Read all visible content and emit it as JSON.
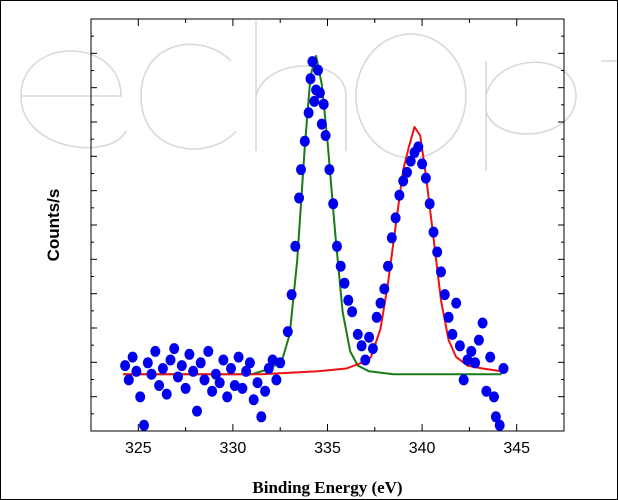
{
  "chart_data": {
    "type": "scatter",
    "title": "",
    "xlabel": "Binding Energy (eV)",
    "ylabel": "Counts/s",
    "xlim": [
      322.5,
      347.5
    ],
    "ylim": [
      -0.2,
      1.25
    ],
    "x_ticks": [
      325,
      330,
      335,
      340,
      345
    ],
    "x_tick_labels": [
      "325",
      "330",
      "335",
      "340",
      "345"
    ],
    "y_tick_labels_shown": false,
    "grid": false,
    "legend": "none",
    "series": [
      {
        "type": "scatter",
        "color": "#0000ee",
        "points": [
          [
            324.3,
            0.03
          ],
          [
            324.5,
            -0.02
          ],
          [
            324.7,
            0.06
          ],
          [
            324.9,
            0.01
          ],
          [
            325.1,
            -0.08
          ],
          [
            325.3,
            -0.18
          ],
          [
            325.5,
            0.04
          ],
          [
            325.7,
            0.0
          ],
          [
            325.9,
            0.08
          ],
          [
            326.1,
            -0.04
          ],
          [
            326.3,
            0.02
          ],
          [
            326.5,
            -0.07
          ],
          [
            326.7,
            0.05
          ],
          [
            326.9,
            0.09
          ],
          [
            327.1,
            -0.01
          ],
          [
            327.3,
            0.03
          ],
          [
            327.5,
            -0.05
          ],
          [
            327.7,
            0.07
          ],
          [
            327.9,
            0.01
          ],
          [
            328.1,
            -0.13
          ],
          [
            328.3,
            0.04
          ],
          [
            328.5,
            -0.02
          ],
          [
            328.7,
            0.08
          ],
          [
            328.9,
            -0.06
          ],
          [
            329.1,
            0.0
          ],
          [
            329.3,
            -0.03
          ],
          [
            329.5,
            0.05
          ],
          [
            329.7,
            -0.08
          ],
          [
            329.9,
            0.02
          ],
          [
            330.1,
            -0.04
          ],
          [
            330.3,
            0.06
          ],
          [
            330.5,
            -0.05
          ],
          [
            330.7,
            0.01
          ],
          [
            330.9,
            0.04
          ],
          [
            331.1,
            -0.09
          ],
          [
            331.3,
            -0.03
          ],
          [
            331.5,
            -0.15
          ],
          [
            331.7,
            -0.06
          ],
          [
            331.9,
            0.02
          ],
          [
            332.1,
            0.05
          ],
          [
            332.3,
            -0.02
          ],
          [
            332.5,
            0.04
          ],
          [
            332.9,
            0.15
          ],
          [
            333.1,
            0.28
          ],
          [
            333.3,
            0.45
          ],
          [
            333.5,
            0.62
          ],
          [
            333.6,
            0.72
          ],
          [
            333.8,
            0.82
          ],
          [
            334.0,
            0.92
          ],
          [
            334.1,
            1.04
          ],
          [
            334.2,
            1.1
          ],
          [
            334.3,
            0.96
          ],
          [
            334.4,
            1.0
          ],
          [
            334.5,
            1.07
          ],
          [
            334.6,
            0.99
          ],
          [
            334.7,
            0.88
          ],
          [
            334.8,
            0.95
          ],
          [
            334.9,
            0.84
          ],
          [
            335.1,
            0.72
          ],
          [
            335.3,
            0.6
          ],
          [
            335.5,
            0.45
          ],
          [
            335.7,
            0.38
          ],
          [
            335.9,
            0.32
          ],
          [
            336.1,
            0.26
          ],
          [
            336.3,
            0.22
          ],
          [
            336.6,
            0.14
          ],
          [
            336.8,
            0.1
          ],
          [
            337.0,
            0.05
          ],
          [
            337.2,
            0.13
          ],
          [
            337.4,
            0.09
          ],
          [
            337.6,
            0.2
          ],
          [
            337.8,
            0.25
          ],
          [
            338.0,
            0.3
          ],
          [
            338.2,
            0.38
          ],
          [
            338.4,
            0.48
          ],
          [
            338.6,
            0.55
          ],
          [
            338.8,
            0.63
          ],
          [
            339.0,
            0.68
          ],
          [
            339.2,
            0.71
          ],
          [
            339.4,
            0.75
          ],
          [
            339.6,
            0.78
          ],
          [
            339.8,
            0.8
          ],
          [
            340.0,
            0.74
          ],
          [
            340.2,
            0.69
          ],
          [
            340.4,
            0.6
          ],
          [
            340.6,
            0.5
          ],
          [
            340.8,
            0.43
          ],
          [
            341.0,
            0.36
          ],
          [
            341.2,
            0.28
          ],
          [
            341.4,
            0.2
          ],
          [
            341.6,
            0.14
          ],
          [
            341.8,
            0.25
          ],
          [
            342.0,
            0.1
          ],
          [
            342.2,
            -0.02
          ],
          [
            342.4,
            0.05
          ],
          [
            342.6,
            0.08
          ],
          [
            342.8,
            0.04
          ],
          [
            343.0,
            0.12
          ],
          [
            343.2,
            0.18
          ],
          [
            343.4,
            -0.06
          ],
          [
            343.6,
            0.06
          ],
          [
            343.8,
            -0.08
          ],
          [
            343.9,
            -0.15
          ],
          [
            344.1,
            -0.18
          ],
          [
            344.3,
            0.02
          ]
        ]
      },
      {
        "type": "line",
        "color": "#1a7a1a",
        "points": [
          [
            324.2,
            0.0
          ],
          [
            331.0,
            0.0
          ],
          [
            332.0,
            0.02
          ],
          [
            332.6,
            0.05
          ],
          [
            333.0,
            0.14
          ],
          [
            333.4,
            0.4
          ],
          [
            333.8,
            0.8
          ],
          [
            334.1,
            1.05
          ],
          [
            334.4,
            1.12
          ],
          [
            334.7,
            1.02
          ],
          [
            335.0,
            0.82
          ],
          [
            335.4,
            0.5
          ],
          [
            335.8,
            0.22
          ],
          [
            336.2,
            0.08
          ],
          [
            336.6,
            0.03
          ],
          [
            337.2,
            0.01
          ],
          [
            338.5,
            0.0
          ],
          [
            344.2,
            0.0
          ]
        ]
      },
      {
        "type": "line",
        "color": "#ee1111",
        "points": [
          [
            324.2,
            0.0
          ],
          [
            331.5,
            0.0
          ],
          [
            334.5,
            0.01
          ],
          [
            336.0,
            0.02
          ],
          [
            336.8,
            0.04
          ],
          [
            337.3,
            0.06
          ],
          [
            337.8,
            0.16
          ],
          [
            338.2,
            0.32
          ],
          [
            338.6,
            0.52
          ],
          [
            339.0,
            0.72
          ],
          [
            339.3,
            0.8
          ],
          [
            339.6,
            0.87
          ],
          [
            339.9,
            0.84
          ],
          [
            340.2,
            0.7
          ],
          [
            340.6,
            0.48
          ],
          [
            341.0,
            0.26
          ],
          [
            341.4,
            0.12
          ],
          [
            341.8,
            0.06
          ],
          [
            342.4,
            0.03
          ],
          [
            343.2,
            0.02
          ],
          [
            344.2,
            0.01
          ]
        ]
      }
    ]
  }
}
